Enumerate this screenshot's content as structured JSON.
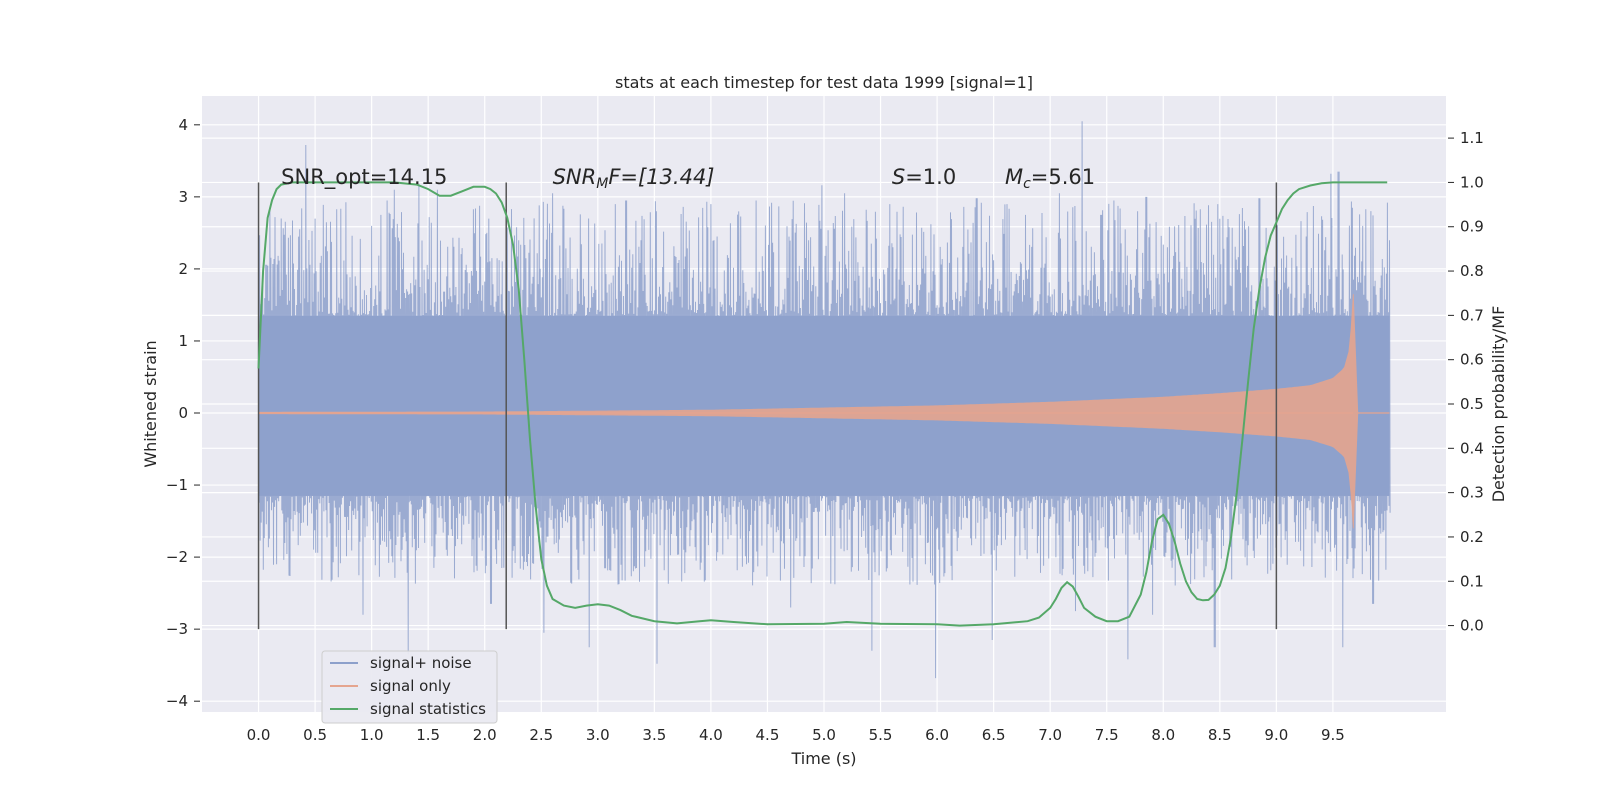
{
  "chart_data": {
    "type": "line",
    "title": "stats at each timestep for test data 1999 [signal=1]",
    "xlabel": "Time (s)",
    "ylabel": "Whitened strain",
    "y2label": "Detection probability/MF",
    "xlim": [
      -0.5,
      10.5
    ],
    "ylim": [
      -4.15,
      4.4
    ],
    "y2lim": [
      -0.195,
      1.195
    ],
    "xticks": [
      0.0,
      0.5,
      1.0,
      1.5,
      2.0,
      2.5,
      3.0,
      3.5,
      4.0,
      4.5,
      5.0,
      5.5,
      6.0,
      6.5,
      7.0,
      7.5,
      8.0,
      8.5,
      9.0,
      9.5
    ],
    "xtick_labels": [
      "0.0",
      "0.5",
      "1.0",
      "1.5",
      "2.0",
      "2.5",
      "3.0",
      "3.5",
      "4.0",
      "4.5",
      "5.0",
      "5.5",
      "6.0",
      "6.5",
      "7.0",
      "7.5",
      "8.0",
      "8.5",
      "9.0",
      "9.5"
    ],
    "yticks": [
      -4,
      -3,
      -2,
      -1,
      0,
      1,
      2,
      3,
      4
    ],
    "ytick_labels": [
      "−4",
      "−3",
      "−2",
      "−1",
      "0",
      "1",
      "2",
      "3",
      "4"
    ],
    "y2ticks": [
      0.0,
      0.1,
      0.2,
      0.3,
      0.4,
      0.5,
      0.6,
      0.7,
      0.8,
      0.9,
      1.0,
      1.1
    ],
    "y2tick_labels": [
      "0.0",
      "0.1",
      "0.2",
      "0.3",
      "0.4",
      "0.5",
      "0.6",
      "0.7",
      "0.8",
      "0.9",
      "1.0",
      "1.1"
    ],
    "grid": true,
    "legend_position": "lower-left",
    "series": [
      {
        "name": "signal+ noise",
        "color": "#8da0cb",
        "axis": "left",
        "kind": "noise",
        "t_start": 0.0,
        "t_end": 10.0,
        "band": [
          -1.15,
          1.35
        ],
        "peaks_high": [
          [
            0.02,
            1.5
          ],
          [
            0.42,
            3.72
          ],
          [
            0.2,
            2.7
          ],
          [
            1.08,
            2.75
          ],
          [
            1.2,
            3.1
          ],
          [
            1.42,
            3.18
          ],
          [
            1.58,
            3.1
          ],
          [
            2.02,
            2.5
          ],
          [
            2.6,
            3.05
          ],
          [
            2.92,
            2.7
          ],
          [
            3.25,
            2.95
          ],
          [
            3.52,
            2.8
          ],
          [
            4.0,
            2.9
          ],
          [
            4.4,
            2.95
          ],
          [
            4.98,
            3.16
          ],
          [
            5.18,
            3.05
          ],
          [
            5.58,
            2.9
          ],
          [
            6.35,
            2.98
          ],
          [
            6.62,
            2.9
          ],
          [
            6.78,
            2.75
          ],
          [
            7.08,
            3.05
          ],
          [
            7.28,
            4.05
          ],
          [
            7.45,
            2.75
          ],
          [
            7.85,
            3.0
          ],
          [
            8.48,
            2.9
          ],
          [
            8.85,
            2.98
          ],
          [
            9.48,
            3.32
          ],
          [
            9.55,
            3.35
          ],
          [
            9.98,
            2.92
          ]
        ],
        "peaks_low": [
          [
            1.32,
            -3.35
          ],
          [
            2.52,
            -3.05
          ],
          [
            2.92,
            -3.25
          ],
          [
            3.52,
            -3.48
          ],
          [
            5.42,
            -3.3
          ],
          [
            5.98,
            -3.68
          ],
          [
            6.48,
            -3.15
          ],
          [
            7.22,
            -2.75
          ],
          [
            7.68,
            -3.42
          ],
          [
            8.45,
            -3.25
          ],
          [
            9.58,
            -3.25
          ],
          [
            9.85,
            -2.65
          ],
          [
            0.92,
            -2.8
          ],
          [
            2.05,
            -2.65
          ],
          [
            4.7,
            -2.7
          ],
          [
            7.9,
            -2.8
          ]
        ]
      },
      {
        "name": "signal only",
        "color": "#e5a58f",
        "axis": "left",
        "kind": "chirp",
        "t_start": 0.0,
        "t_merge": 9.68,
        "t_end": 9.72,
        "envelope_points": [
          [
            0.0,
            0.01
          ],
          [
            2.0,
            0.015
          ],
          [
            4.0,
            0.04
          ],
          [
            5.0,
            0.07
          ],
          [
            6.0,
            0.1
          ],
          [
            7.0,
            0.15
          ],
          [
            8.0,
            0.22
          ],
          [
            8.5,
            0.27
          ],
          [
            9.0,
            0.33
          ],
          [
            9.3,
            0.38
          ],
          [
            9.5,
            0.48
          ],
          [
            9.6,
            0.62
          ],
          [
            9.65,
            0.9
          ],
          [
            9.68,
            1.65
          ]
        ],
        "tail_after_merge": 0.02
      },
      {
        "name": "signal statistics",
        "color": "#55a868",
        "axis": "right",
        "kind": "line",
        "x": [
          0.0,
          0.04,
          0.08,
          0.12,
          0.16,
          0.2,
          0.3,
          0.5,
          0.8,
          1.0,
          1.2,
          1.4,
          1.5,
          1.6,
          1.7,
          1.8,
          1.9,
          2.0,
          2.05,
          2.1,
          2.15,
          2.2,
          2.25,
          2.3,
          2.35,
          2.4,
          2.45,
          2.5,
          2.55,
          2.6,
          2.7,
          2.8,
          2.9,
          3.0,
          3.1,
          3.2,
          3.3,
          3.5,
          3.7,
          3.9,
          4.0,
          4.2,
          4.5,
          5.0,
          5.2,
          5.5,
          6.0,
          6.2,
          6.5,
          6.8,
          6.9,
          7.0,
          7.05,
          7.1,
          7.15,
          7.2,
          7.25,
          7.3,
          7.4,
          7.5,
          7.6,
          7.7,
          7.8,
          7.85,
          7.9,
          7.95,
          8.0,
          8.05,
          8.1,
          8.15,
          8.2,
          8.25,
          8.3,
          8.35,
          8.4,
          8.45,
          8.5,
          8.55,
          8.6,
          8.65,
          8.7,
          8.75,
          8.8,
          8.85,
          8.9,
          8.95,
          9.0,
          9.05,
          9.1,
          9.15,
          9.2,
          9.3,
          9.4,
          9.5,
          9.6,
          9.7,
          9.8,
          9.9,
          9.98
        ],
        "y": [
          0.58,
          0.8,
          0.92,
          0.96,
          0.985,
          0.995,
          1.0,
          1.0,
          1.0,
          1.0,
          1.0,
          0.995,
          0.985,
          0.97,
          0.97,
          0.98,
          0.99,
          0.99,
          0.985,
          0.975,
          0.955,
          0.92,
          0.86,
          0.76,
          0.6,
          0.42,
          0.27,
          0.15,
          0.09,
          0.06,
          0.045,
          0.04,
          0.045,
          0.048,
          0.045,
          0.035,
          0.022,
          0.01,
          0.005,
          0.01,
          0.012,
          0.008,
          0.003,
          0.004,
          0.008,
          0.004,
          0.003,
          0.0,
          0.003,
          0.01,
          0.018,
          0.04,
          0.06,
          0.085,
          0.098,
          0.088,
          0.065,
          0.04,
          0.02,
          0.01,
          0.01,
          0.02,
          0.07,
          0.12,
          0.19,
          0.24,
          0.25,
          0.23,
          0.19,
          0.14,
          0.1,
          0.075,
          0.06,
          0.057,
          0.058,
          0.07,
          0.09,
          0.13,
          0.2,
          0.3,
          0.42,
          0.55,
          0.67,
          0.76,
          0.83,
          0.88,
          0.91,
          0.94,
          0.96,
          0.975,
          0.985,
          0.993,
          0.998,
          1.0,
          1.0,
          1.0,
          1.0,
          1.0,
          1.0
        ]
      }
    ],
    "vlines": [
      {
        "x": 0.0,
        "y_from": -3.0,
        "y_to": 3.2
      },
      {
        "x": 2.19,
        "y_from": -3.0,
        "y_to": 3.2
      },
      {
        "x": 9.0,
        "y_from": -3.0,
        "y_to": 3.2
      }
    ],
    "annotations": {
      "snr_opt": {
        "text": "SNR_opt=14.15",
        "x": 0.2
      },
      "snr_mf": {
        "base": "SNR",
        "sub": "M",
        "rest": "F=[13.44]",
        "x": 2.6
      },
      "s": {
        "italic": "S",
        "rest": "=1.0",
        "x": 5.6
      },
      "mc": {
        "base": "M",
        "sub": "c",
        "rest": "=5.61",
        "x": 6.6
      }
    }
  }
}
